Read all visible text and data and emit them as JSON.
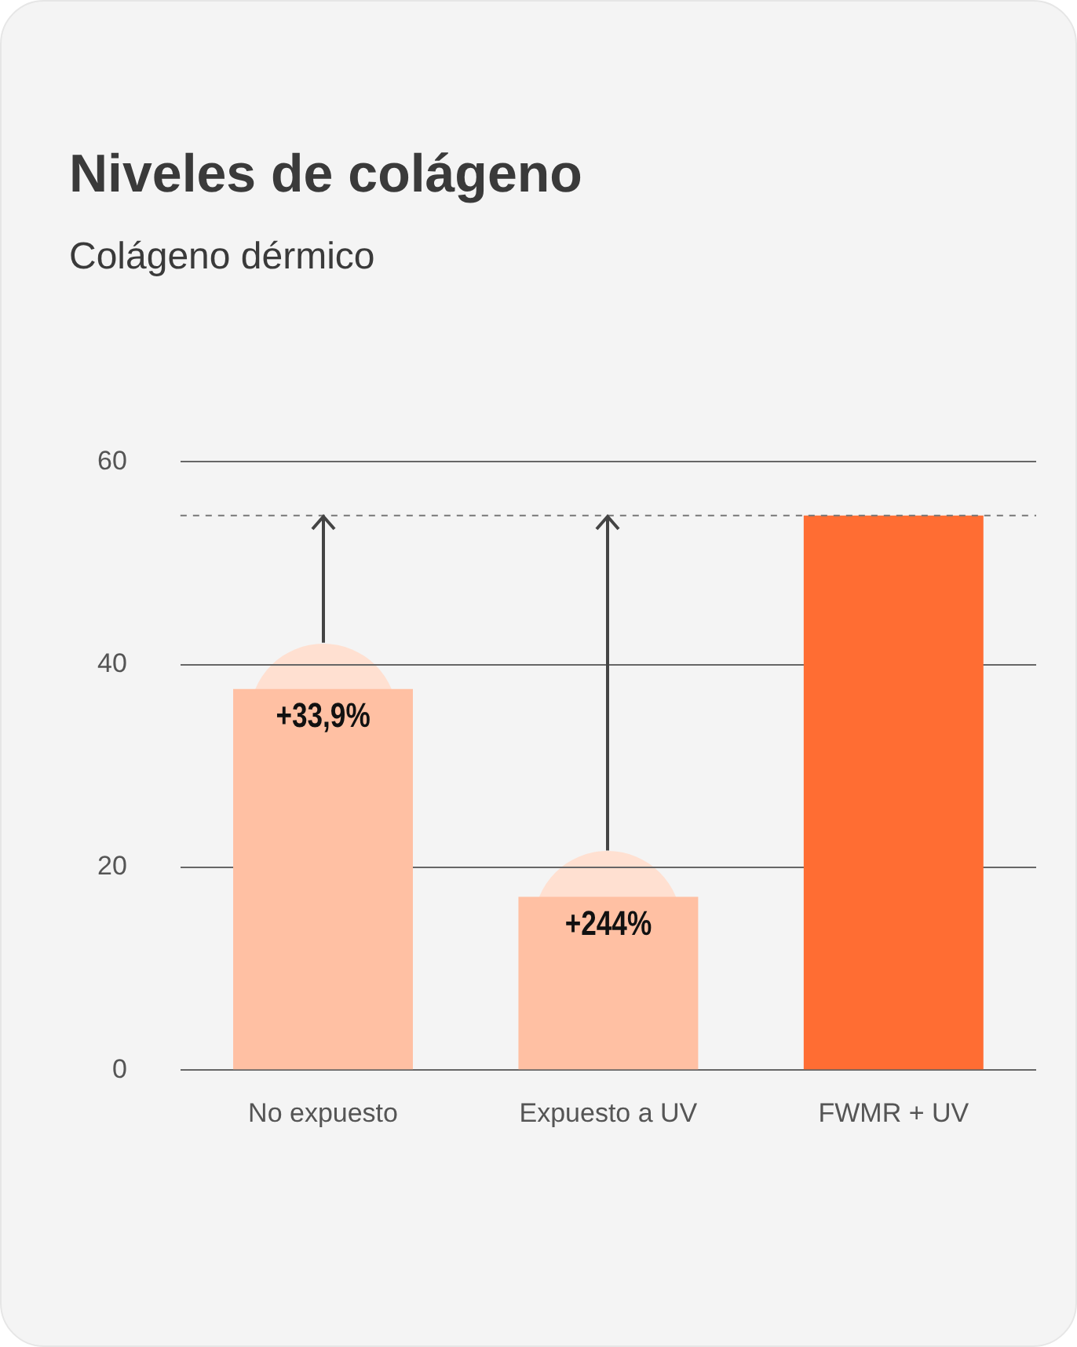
{
  "chart_data": {
    "type": "bar",
    "title": "Niveles de colágeno",
    "subtitle": "Colágeno dérmico",
    "categories": [
      "No expuesto",
      "Expuesto a UV",
      "FWMR + UV"
    ],
    "values": [
      37.6,
      17.1,
      54.7
    ],
    "colors": [
      "#ffc0a3",
      "#ffc0a3",
      "#ff6d33"
    ],
    "ylim": [
      0,
      60
    ],
    "yticks": [
      0,
      20,
      40,
      60
    ],
    "grid": "y",
    "ref_lines": [
      {
        "axis": "y",
        "value": 54.7,
        "color": "#777777",
        "line_style": "dashed"
      }
    ],
    "annotations": [
      {
        "text": "+33,9%",
        "x": "No expuesto",
        "y": 37.6
      },
      {
        "text": "+244%",
        "x": "Expuesto a UV",
        "y": 17.1
      }
    ]
  }
}
